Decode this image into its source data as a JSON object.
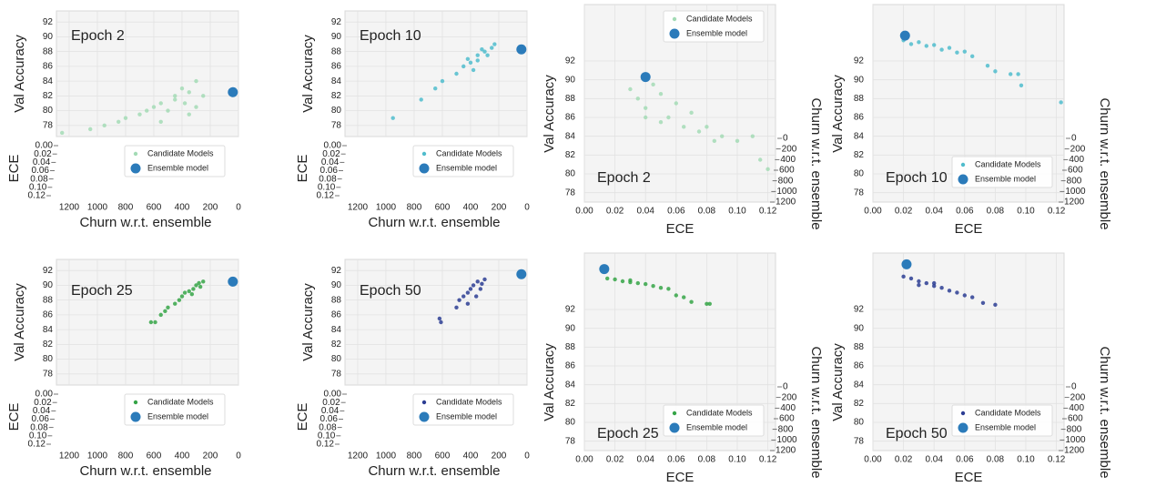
{
  "chart_data": [
    {
      "type": "scatter",
      "title": "Epoch 2",
      "x_label": "Churn w.r.t. ensemble",
      "y_label": "Val Accuracy",
      "z_label": "ECE",
      "xlim": [
        1290,
        0
      ],
      "ylim": [
        76.5,
        93.5
      ],
      "zlim": [
        0,
        0.12
      ],
      "xticks": [
        1200,
        1000,
        800,
        600,
        400,
        200,
        0
      ],
      "yticks": [
        78,
        80,
        82,
        84,
        86,
        88,
        90,
        92
      ],
      "zticks": [
        {
          "value": 0,
          "label": "0.00"
        },
        0.02,
        0.04,
        0.06,
        0.08,
        {
          "value": 0.1,
          "label": "0.10"
        },
        0.12
      ],
      "legend": "lower center",
      "series": [
        {
          "name": "Candidate Models",
          "color": "#a3dbb5",
          "x": [
            1250,
            1050,
            950,
            850,
            800,
            700,
            650,
            600,
            550,
            500,
            450,
            400,
            380,
            350,
            300,
            300,
            250,
            450,
            350,
            550
          ],
          "values": [
            77,
            77.5,
            78,
            78.5,
            79,
            79.5,
            80,
            80.5,
            81,
            80,
            82,
            83,
            81,
            82.5,
            84,
            80.5,
            82,
            81.5,
            79.5,
            78.5
          ]
        },
        {
          "name": "Ensemble model",
          "color": "#2b7bba",
          "x": [
            40
          ],
          "values": [
            82.5
          ]
        }
      ]
    },
    {
      "type": "scatter",
      "title": "Epoch 10",
      "x_label": "Churn w.r.t. ensemble",
      "y_label": "Val Accuracy",
      "z_label": "ECE",
      "xlim": [
        1290,
        0
      ],
      "ylim": [
        76.5,
        93.5
      ],
      "zlim": [
        0,
        0.12
      ],
      "xticks": [
        1200,
        1000,
        800,
        600,
        400,
        200,
        0
      ],
      "yticks": [
        78,
        80,
        82,
        84,
        86,
        88,
        90,
        92
      ],
      "zticks": [
        {
          "value": 0,
          "label": "0.00"
        },
        0.02,
        0.04,
        0.06,
        0.08,
        {
          "value": 0.1,
          "label": "0.10"
        },
        0.12
      ],
      "legend": "lower center",
      "series": [
        {
          "name": "Candidate Models",
          "color": "#4fbccc",
          "x": [
            950,
            750,
            650,
            600,
            500,
            450,
            400,
            350,
            300,
            250,
            350,
            420,
            280,
            230,
            320,
            380
          ],
          "values": [
            79,
            81.5,
            83,
            84,
            85,
            86,
            86.5,
            87.5,
            88,
            88.5,
            86.8,
            87,
            87.5,
            89,
            88.3,
            85.5
          ]
        },
        {
          "name": "Ensemble model",
          "color": "#2b7bba",
          "x": [
            40
          ],
          "values": [
            88.3
          ]
        }
      ]
    },
    {
      "type": "scatter",
      "title": "Epoch 2",
      "x_label": "ECE",
      "y_label": "Val Accuracy",
      "z_label": "Churn w.r.t. ensemble",
      "xlim": [
        0,
        0.125
      ],
      "ylim": [
        77,
        98
      ],
      "zlim": [
        0,
        1200
      ],
      "xticks": [
        {
          "value": 0,
          "label": "0.00"
        },
        0.02,
        0.04,
        0.06,
        0.08,
        {
          "value": 0.1,
          "label": "0.10"
        },
        0.12
      ],
      "yticks": [
        78,
        80,
        82,
        84,
        86,
        88,
        90,
        92
      ],
      "zticks": [
        0,
        200,
        400,
        600,
        800,
        1000,
        1200
      ],
      "legend": "upper center",
      "series": [
        {
          "name": "Candidate Models",
          "color": "#a3dbb5",
          "x": [
            0.03,
            0.035,
            0.04,
            0.045,
            0.05,
            0.055,
            0.06,
            0.065,
            0.07,
            0.075,
            0.08,
            0.085,
            0.09,
            0.1,
            0.11,
            0.12,
            0.115,
            0.05,
            0.04
          ],
          "values": [
            89,
            88,
            87,
            89.5,
            88.5,
            86,
            87.5,
            85,
            86.5,
            84.5,
            85,
            83.5,
            84,
            83.5,
            84,
            80.5,
            81.5,
            85.5,
            86
          ]
        },
        {
          "name": "Ensemble model",
          "color": "#2b7bba",
          "x": [
            0.04
          ],
          "values": [
            90.3
          ]
        }
      ]
    },
    {
      "type": "scatter",
      "title": "Epoch 10",
      "x_label": "ECE",
      "y_label": "Val Accuracy",
      "z_label": "Churn w.r.t. ensemble",
      "xlim": [
        0,
        0.125
      ],
      "ylim": [
        77,
        98
      ],
      "zlim": [
        0,
        1200
      ],
      "xticks": [
        {
          "value": 0,
          "label": "0.00"
        },
        0.02,
        0.04,
        0.06,
        0.08,
        {
          "value": 0.1,
          "label": "0.10"
        },
        0.12
      ],
      "yticks": [
        78,
        80,
        82,
        84,
        86,
        88,
        90,
        92
      ],
      "zticks": [
        0,
        200,
        400,
        600,
        800,
        1000,
        1200
      ],
      "legend": "lower center",
      "series": [
        {
          "name": "Candidate Models",
          "color": "#4fbccc",
          "x": [
            0.02,
            0.025,
            0.03,
            0.035,
            0.04,
            0.045,
            0.05,
            0.055,
            0.06,
            0.065,
            0.075,
            0.08,
            0.09,
            0.095,
            0.097,
            0.123
          ],
          "values": [
            94.2,
            93.8,
            94,
            93.6,
            93.7,
            93.2,
            93.4,
            92.9,
            93,
            92.5,
            91.5,
            90.9,
            90.6,
            90.6,
            89.4,
            87.6
          ]
        },
        {
          "name": "Ensemble model",
          "color": "#2b7bba",
          "x": [
            0.021
          ],
          "values": [
            94.7
          ]
        }
      ]
    },
    {
      "type": "scatter",
      "title": "Epoch 25",
      "x_label": "Churn w.r.t. ensemble",
      "y_label": "Val Accuracy",
      "z_label": "ECE",
      "xlim": [
        1290,
        0
      ],
      "ylim": [
        76.5,
        93.5
      ],
      "zlim": [
        0,
        0.12
      ],
      "xticks": [
        1200,
        1000,
        800,
        600,
        400,
        200,
        0
      ],
      "yticks": [
        78,
        80,
        82,
        84,
        86,
        88,
        90,
        92
      ],
      "zticks": [
        {
          "value": 0,
          "label": "0.00"
        },
        0.02,
        0.04,
        0.06,
        0.08,
        {
          "value": 0.1,
          "label": "0.10"
        },
        0.12
      ],
      "legend": "lower center",
      "series": [
        {
          "name": "Candidate Models",
          "color": "#35a447",
          "x": [
            620,
            590,
            550,
            520,
            500,
            450,
            420,
            400,
            380,
            350,
            320,
            300,
            280,
            250,
            330,
            270
          ],
          "values": [
            85,
            85,
            86,
            86.5,
            87,
            87.5,
            88,
            88.5,
            89,
            89.2,
            89.5,
            90,
            90.3,
            90.5,
            88.8,
            89.8
          ]
        },
        {
          "name": "Ensemble model",
          "color": "#2b7bba",
          "x": [
            40
          ],
          "values": [
            90.5
          ]
        }
      ]
    },
    {
      "type": "scatter",
      "title": "Epoch 50",
      "x_label": "Churn w.r.t. ensemble",
      "y_label": "Val Accuracy",
      "z_label": "ECE",
      "xlim": [
        1290,
        0
      ],
      "ylim": [
        76.5,
        93.5
      ],
      "zlim": [
        0,
        0.12
      ],
      "xticks": [
        1200,
        1000,
        800,
        600,
        400,
        200,
        0
      ],
      "yticks": [
        78,
        80,
        82,
        84,
        86,
        88,
        90,
        92
      ],
      "zticks": [
        {
          "value": 0,
          "label": "0.00"
        },
        0.02,
        0.04,
        0.06,
        0.08,
        {
          "value": 0.1,
          "label": "0.10"
        },
        0.12
      ],
      "legend": "lower center",
      "series": [
        {
          "name": "Candidate Models",
          "color": "#2c3d93",
          "x": [
            620,
            610,
            500,
            480,
            450,
            420,
            400,
            380,
            350,
            320,
            300,
            420,
            360,
            330
          ],
          "values": [
            85.5,
            85,
            87,
            88,
            88.5,
            89,
            89.5,
            90,
            90.5,
            90.2,
            90.8,
            87.5,
            88.5,
            89.5
          ]
        },
        {
          "name": "Ensemble model",
          "color": "#2b7bba",
          "x": [
            40
          ],
          "values": [
            91.5
          ]
        }
      ]
    },
    {
      "type": "scatter",
      "title": "Epoch 25",
      "x_label": "ECE",
      "y_label": "Val Accuracy",
      "z_label": "Churn w.r.t. ensemble",
      "xlim": [
        0,
        0.125
      ],
      "ylim": [
        77,
        98
      ],
      "zlim": [
        0,
        1200
      ],
      "xticks": [
        {
          "value": 0,
          "label": "0.00"
        },
        0.02,
        0.04,
        0.06,
        0.08,
        {
          "value": 0.1,
          "label": "0.10"
        },
        0.12
      ],
      "yticks": [
        78,
        80,
        82,
        84,
        86,
        88,
        90,
        92
      ],
      "zticks": [
        0,
        200,
        400,
        600,
        800,
        1000,
        1200
      ],
      "legend": "lower center",
      "series": [
        {
          "name": "Candidate Models",
          "color": "#35a447",
          "x": [
            0.015,
            0.02,
            0.025,
            0.03,
            0.035,
            0.04,
            0.045,
            0.05,
            0.055,
            0.06,
            0.065,
            0.07,
            0.08,
            0.082,
            0.03
          ],
          "values": [
            95.3,
            95.2,
            95,
            95.1,
            94.8,
            94.7,
            94.5,
            94.3,
            94.2,
            93.5,
            93.3,
            92.8,
            92.6,
            92.6,
            94.9
          ]
        },
        {
          "name": "Ensemble model",
          "color": "#2b7bba",
          "x": [
            0.013
          ],
          "values": [
            96.3
          ]
        }
      ]
    },
    {
      "type": "scatter",
      "title": "Epoch 50",
      "x_label": "ECE",
      "y_label": "Val Accuracy",
      "z_label": "Churn w.r.t. ensemble",
      "xlim": [
        0,
        0.125
      ],
      "ylim": [
        77,
        98
      ],
      "zlim": [
        0,
        1200
      ],
      "xticks": [
        {
          "value": 0,
          "label": "0.00"
        },
        0.02,
        0.04,
        0.06,
        0.08,
        {
          "value": 0.1,
          "label": "0.10"
        },
        0.12
      ],
      "yticks": [
        78,
        80,
        82,
        84,
        86,
        88,
        90,
        92
      ],
      "zticks": [
        0,
        200,
        400,
        600,
        800,
        1000,
        1200
      ],
      "legend": "lower center",
      "series": [
        {
          "name": "Candidate Models",
          "color": "#2c3d93",
          "x": [
            0.02,
            0.025,
            0.03,
            0.035,
            0.04,
            0.045,
            0.05,
            0.055,
            0.06,
            0.065,
            0.072,
            0.08,
            0.03,
            0.04
          ],
          "values": [
            95.5,
            95.3,
            95,
            94.8,
            94.5,
            94.3,
            94,
            93.8,
            93.5,
            93.3,
            92.7,
            92.5,
            94.6,
            94.8
          ]
        },
        {
          "name": "Ensemble model",
          "color": "#2b7bba",
          "x": [
            0.022
          ],
          "values": [
            96.8
          ]
        }
      ]
    }
  ]
}
